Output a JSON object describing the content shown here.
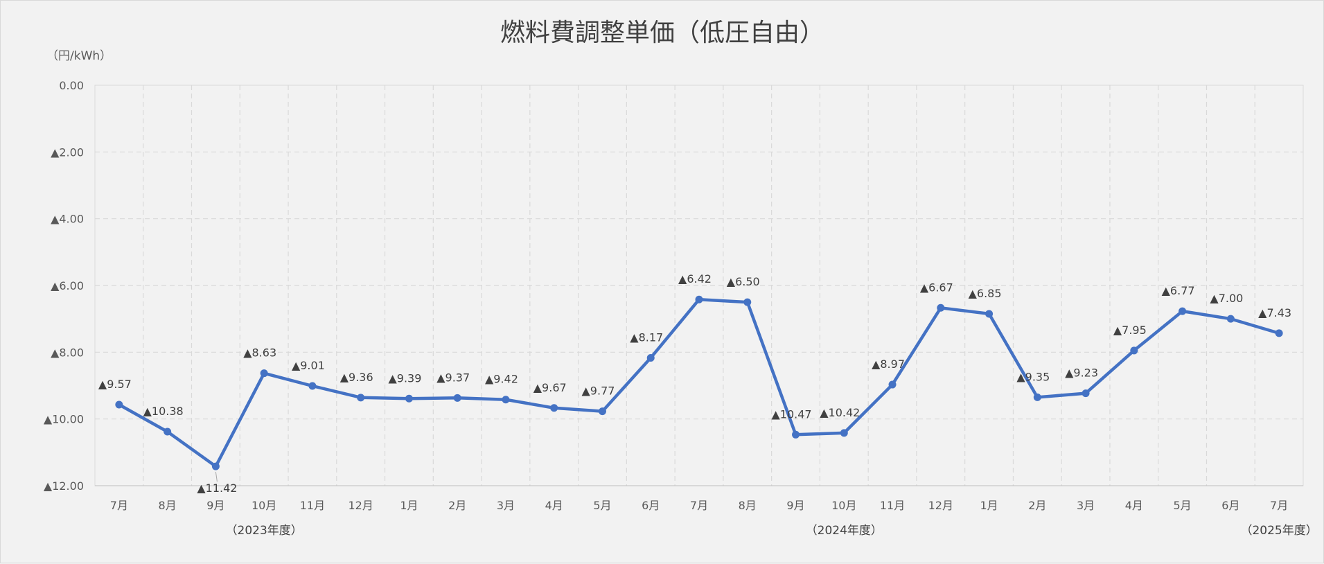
{
  "chart_data": {
    "type": "line",
    "title": "燃料費調整単価（低圧自由）",
    "ylabel": "（円/kWh）",
    "ylim": [
      -12,
      0
    ],
    "y_ticks": [
      {
        "value": 0,
        "label": "0.00"
      },
      {
        "value": -2,
        "label": "▲2.00"
      },
      {
        "value": -4,
        "label": "▲4.00"
      },
      {
        "value": -6,
        "label": "▲6.00"
      },
      {
        "value": -8,
        "label": "▲8.00"
      },
      {
        "value": -10,
        "label": "▲10.00"
      },
      {
        "value": -12,
        "label": "▲12.00"
      }
    ],
    "categories": [
      "7月",
      "8月",
      "9月",
      "10月",
      "11月",
      "12月",
      "1月",
      "2月",
      "3月",
      "4月",
      "5月",
      "6月",
      "7月",
      "8月",
      "9月",
      "10月",
      "11月",
      "12月",
      "1月",
      "2月",
      "3月",
      "4月",
      "5月",
      "6月",
      "7月"
    ],
    "values": [
      -9.57,
      -10.38,
      -11.42,
      -8.63,
      -9.01,
      -9.36,
      -9.39,
      -9.37,
      -9.42,
      -9.67,
      -9.77,
      -8.17,
      -6.42,
      -6.5,
      -10.47,
      -10.42,
      -8.97,
      -6.67,
      -6.85,
      -9.35,
      -9.23,
      -7.95,
      -6.77,
      -7.0,
      -7.43
    ],
    "data_labels": [
      "▲9.57",
      "▲10.38",
      "▲11.42",
      "▲8.63",
      "▲9.01",
      "▲9.36",
      "▲9.39",
      "▲9.37",
      "▲9.42",
      "▲9.67",
      "▲9.77",
      "▲8.17",
      "▲6.42",
      "▲6.50",
      "▲10.47",
      "▲10.42",
      "▲8.97",
      "▲6.67",
      "▲6.85",
      "▲9.35",
      "▲9.23",
      "▲7.95",
      "▲6.77",
      "▲7.00",
      "▲7.43"
    ],
    "fiscal_years": [
      {
        "label": "（2023年度）",
        "category_index": 3
      },
      {
        "label": "（2024年度）",
        "category_index": 15
      },
      {
        "label": "（2025年度）",
        "category_index": 24
      }
    ],
    "grid": true,
    "line_color": "#4472c4",
    "grid_color": "#d9d9d9"
  }
}
